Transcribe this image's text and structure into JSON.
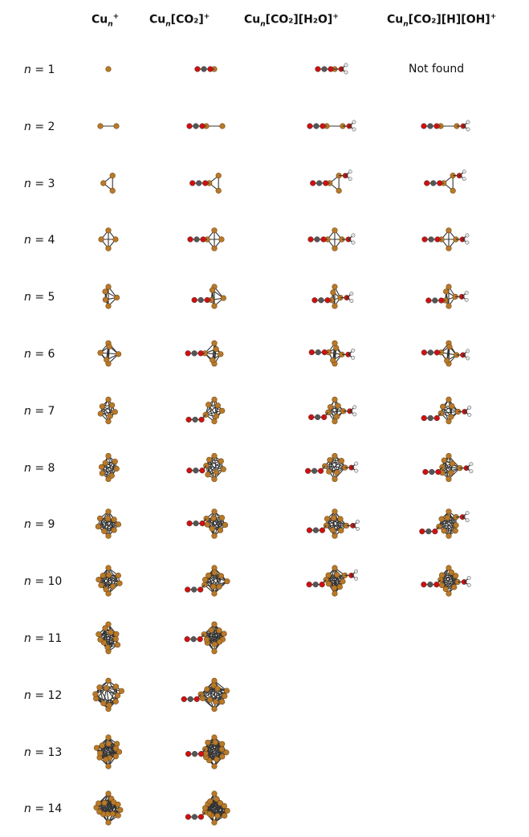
{
  "headers": [
    {
      "base": "Cu",
      "sub": "n",
      "rest": "",
      "sup": "+"
    },
    {
      "base": "Cu",
      "sub": "n",
      "rest": "[CO₂]",
      "sup": "+"
    },
    {
      "base": "Cu",
      "sub": "n",
      "rest": "[CO₂][H₂O]",
      "sup": "+"
    },
    {
      "base": "Cu",
      "sub": "n",
      "rest": "[CO₂][H][OH]",
      "sup": "+"
    }
  ],
  "row_prefix": "n",
  "row_eq": " = ",
  "rows": [
    "1",
    "2",
    "3",
    "4",
    "5",
    "6",
    "7",
    "8",
    "9",
    "10",
    "11",
    "12",
    "13",
    "14"
  ],
  "not_found_label": "Not found",
  "columns_present_per_row": [
    4,
    4,
    4,
    4,
    4,
    4,
    4,
    4,
    4,
    4,
    2,
    2,
    2,
    2
  ],
  "atom_colors": {
    "Cu": "#b87a2a",
    "O": "#d01010",
    "C": "#555555",
    "H": "#e6e6e6",
    "bond": "#333333"
  },
  "icons": [
    "cluster-structure-icon"
  ]
}
